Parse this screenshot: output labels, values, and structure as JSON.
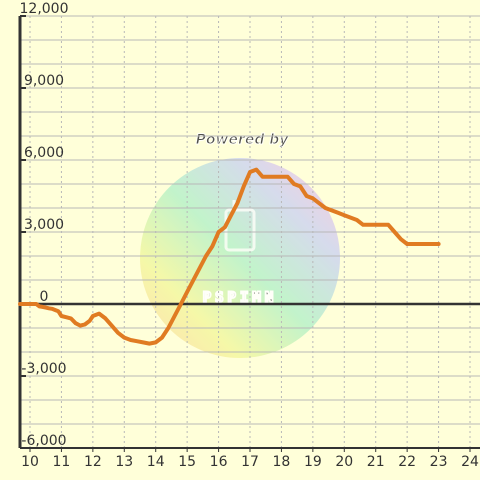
{
  "chart_data": {
    "type": "line",
    "title": "",
    "xlabel": "",
    "ylabel": "",
    "xlim": [
      10,
      24
    ],
    "ylim": [
      -6000,
      12000
    ],
    "x_ticks": [
      10,
      11,
      12,
      13,
      14,
      15,
      16,
      17,
      18,
      19,
      20,
      21,
      22,
      23,
      24
    ],
    "x_tick_labels": [
      "10",
      "11",
      "12",
      "13",
      "14",
      "15",
      "16",
      "17",
      "18",
      "19",
      "20",
      "21",
      "22",
      "23",
      "24"
    ],
    "y_ticks": [
      -6000,
      -3000,
      0,
      3000,
      6000,
      9000,
      12000
    ],
    "y_tick_labels": [
      "-6,000",
      "-3,000",
      "0",
      "3,000",
      "6,000",
      "9,000",
      "12,000"
    ],
    "grid": true,
    "zero_line": true,
    "background_color": "#ffffd9",
    "line_color": "#e07b22",
    "grid_color": "#b8b8b8",
    "axis_color": "#333333",
    "series": [
      {
        "name": "",
        "x": [
          9.0,
          9.83,
          10.0,
          10.1,
          10.2,
          10.3,
          10.4,
          10.5,
          10.6,
          10.7,
          10.8,
          10.9,
          11.0,
          11.15,
          11.3,
          11.45,
          11.6,
          11.75,
          11.9,
          12.0,
          12.2,
          12.4,
          12.6,
          12.8,
          13.0,
          13.2,
          13.4,
          13.6,
          13.8,
          14.0,
          14.2,
          14.4,
          14.6,
          14.8,
          15.0,
          15.2,
          15.4,
          15.6,
          15.8,
          16.0,
          16.2,
          16.4,
          16.6,
          16.8,
          17.0,
          17.2,
          17.4,
          17.6,
          17.8,
          18.0,
          18.2,
          18.4,
          18.6,
          18.8,
          19.0,
          19.2,
          19.4,
          19.6,
          19.8,
          20.0,
          20.2,
          20.4,
          20.6,
          20.8,
          21.0,
          21.2,
          21.4,
          21.6,
          21.8,
          22.0,
          22.2,
          22.4,
          22.6,
          22.8,
          23.0
        ],
        "values": [
          0,
          0,
          0,
          0,
          0,
          -100,
          -120,
          -150,
          -180,
          -200,
          -250,
          -300,
          -500,
          -550,
          -600,
          -800,
          -900,
          -850,
          -700,
          -500,
          -400,
          -600,
          -900,
          -1200,
          -1400,
          -1500,
          -1550,
          -1600,
          -1650,
          -1600,
          -1400,
          -1000,
          -500,
          0,
          500,
          1000,
          1500,
          2000,
          2400,
          3000,
          3200,
          3700,
          4200,
          4900,
          5500,
          5600,
          5300,
          5300,
          5300,
          5300,
          5300,
          5000,
          4900,
          4500,
          4400,
          4200,
          4000,
          3900,
          3800,
          3700,
          3600,
          3500,
          3300,
          3300,
          3300,
          3300,
          3300,
          3000,
          2700,
          2500,
          2500,
          2500,
          2500,
          2500,
          2500
        ]
      }
    ]
  },
  "watermark": {
    "title": "Powered by",
    "subtitle": "PSPIMN",
    "icon": "plug-icon"
  }
}
